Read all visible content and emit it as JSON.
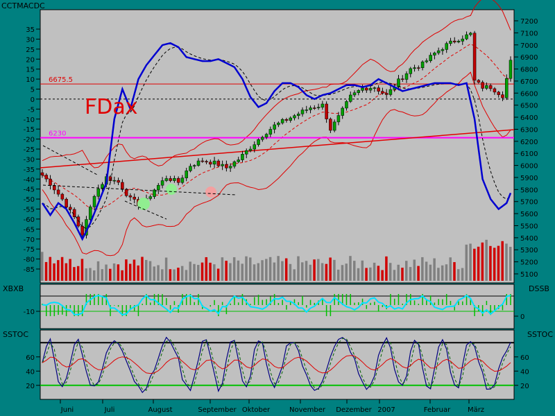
{
  "window": {
    "title": "CCTMACDC",
    "left_label_xbxb": "XBXB",
    "right_label_dssb": "DSSB",
    "left_label_sstoc": "SSTOC",
    "right_label_sstoc": "SSTOC"
  },
  "colors": {
    "background": "#008080",
    "panel": "#c0c0c0",
    "candle_up": "#00a000",
    "candle_down": "#c00000",
    "macd": "#0000d0",
    "bands": "#e00000",
    "magenta_line": "#ff00ff",
    "cyan_line": "#00e0ff"
  },
  "chart_data": [
    {
      "type": "line",
      "title": "FDax",
      "left_axis_ticks": [
        "35",
        "30",
        "25",
        "20",
        "15",
        "10",
        "5",
        "0",
        "-5",
        "-10",
        "-15",
        "-20",
        "-25",
        "-30",
        "-35",
        "-40",
        "-45",
        "-50",
        "-55",
        "-60",
        "-65",
        "-70",
        "-75",
        "-80",
        "-85"
      ],
      "right_axis_ticks": [
        "7200",
        "7100",
        "7000",
        "6900",
        "6800",
        "6700",
        "6600",
        "6500",
        "6400",
        "6300",
        "6200",
        "6100",
        "6000",
        "5900",
        "5800",
        "5700",
        "5600",
        "5500",
        "5400",
        "5300",
        "5200",
        "5100"
      ],
      "ylim_price": [
        5050,
        7250
      ],
      "ylim_macd": [
        -88,
        38
      ],
      "annotations": [
        {
          "label": "6675.5",
          "value": 6675.5,
          "color": "#e00000"
        },
        {
          "label": "6230",
          "value": 6230,
          "color": "#ff00ff"
        }
      ],
      "price_anchors": [
        [
          0,
          5920
        ],
        [
          2,
          5850
        ],
        [
          5,
          5720
        ],
        [
          8,
          5570
        ],
        [
          10,
          5430
        ],
        [
          13,
          5760
        ],
        [
          16,
          5900
        ],
        [
          19,
          5860
        ],
        [
          22,
          5720
        ],
        [
          25,
          5660
        ],
        [
          28,
          5800
        ],
        [
          31,
          5900
        ],
        [
          34,
          5860
        ],
        [
          37,
          6000
        ],
        [
          40,
          6040
        ],
        [
          43,
          6020
        ],
        [
          46,
          5980
        ],
        [
          49,
          6050
        ],
        [
          52,
          6150
        ],
        [
          55,
          6250
        ],
        [
          58,
          6330
        ],
        [
          61,
          6380
        ],
        [
          64,
          6430
        ],
        [
          67,
          6480
        ],
        [
          70,
          6500
        ],
        [
          72,
          6300
        ],
        [
          74,
          6400
        ],
        [
          77,
          6570
        ],
        [
          80,
          6640
        ],
        [
          83,
          6650
        ],
        [
          86,
          6580
        ],
        [
          89,
          6700
        ],
        [
          92,
          6800
        ],
        [
          95,
          6840
        ],
        [
          98,
          6930
        ],
        [
          101,
          7000
        ],
        [
          104,
          7050
        ],
        [
          107,
          7090
        ],
        [
          108,
          6700
        ],
        [
          110,
          6650
        ],
        [
          112,
          6650
        ],
        [
          115,
          6580
        ],
        [
          117,
          6860
        ]
      ],
      "macd_anchors": [
        [
          0,
          -52
        ],
        [
          2,
          -58
        ],
        [
          4,
          -52
        ],
        [
          6,
          -55
        ],
        [
          8,
          -62
        ],
        [
          10,
          -70
        ],
        [
          12,
          -62
        ],
        [
          14,
          -52
        ],
        [
          16,
          -42
        ],
        [
          18,
          -10
        ],
        [
          20,
          5
        ],
        [
          22,
          -5
        ],
        [
          24,
          10
        ],
        [
          26,
          17
        ],
        [
          28,
          22
        ],
        [
          30,
          27
        ],
        [
          32,
          28
        ],
        [
          34,
          26
        ],
        [
          36,
          21
        ],
        [
          38,
          20
        ],
        [
          40,
          19
        ],
        [
          42,
          19
        ],
        [
          44,
          20
        ],
        [
          46,
          18
        ],
        [
          48,
          16
        ],
        [
          50,
          10
        ],
        [
          52,
          1
        ],
        [
          54,
          -4
        ],
        [
          56,
          -2
        ],
        [
          58,
          4
        ],
        [
          60,
          8
        ],
        [
          62,
          8
        ],
        [
          64,
          6
        ],
        [
          66,
          2
        ],
        [
          68,
          0
        ],
        [
          70,
          2
        ],
        [
          72,
          3
        ],
        [
          74,
          5
        ],
        [
          76,
          7
        ],
        [
          78,
          7
        ],
        [
          80,
          6
        ],
        [
          82,
          7
        ],
        [
          84,
          10
        ],
        [
          86,
          8
        ],
        [
          88,
          6
        ],
        [
          90,
          4
        ],
        [
          92,
          5
        ],
        [
          94,
          6
        ],
        [
          96,
          7
        ],
        [
          98,
          8
        ],
        [
          100,
          8
        ],
        [
          102,
          8
        ],
        [
          104,
          7
        ],
        [
          106,
          8
        ],
        [
          108,
          -10
        ],
        [
          110,
          -40
        ],
        [
          112,
          -50
        ],
        [
          114,
          -55
        ],
        [
          116,
          -52
        ],
        [
          117,
          -47
        ]
      ],
      "series": [
        {
          "type": "candlestick",
          "values": "price_anchors"
        },
        {
          "type": "line",
          "values": "macd_anchors"
        }
      ]
    },
    {
      "type": "bar",
      "xlabels_months": [
        "Juni",
        "Juli",
        "August",
        "September",
        "Oktober",
        "November",
        "Dezember",
        "2007",
        "Februar",
        "März"
      ]
    },
    {
      "type": "line",
      "panel": "XBXB / DSSB",
      "left_ticks": [
        "-10"
      ],
      "right_ticks": [
        "0"
      ]
    },
    {
      "type": "line",
      "panel": "SSTOC",
      "left_ticks": [
        "60",
        "40",
        "20"
      ],
      "right_ticks": [
        "60",
        "40",
        "20"
      ],
      "levels": [
        80,
        20
      ]
    }
  ]
}
